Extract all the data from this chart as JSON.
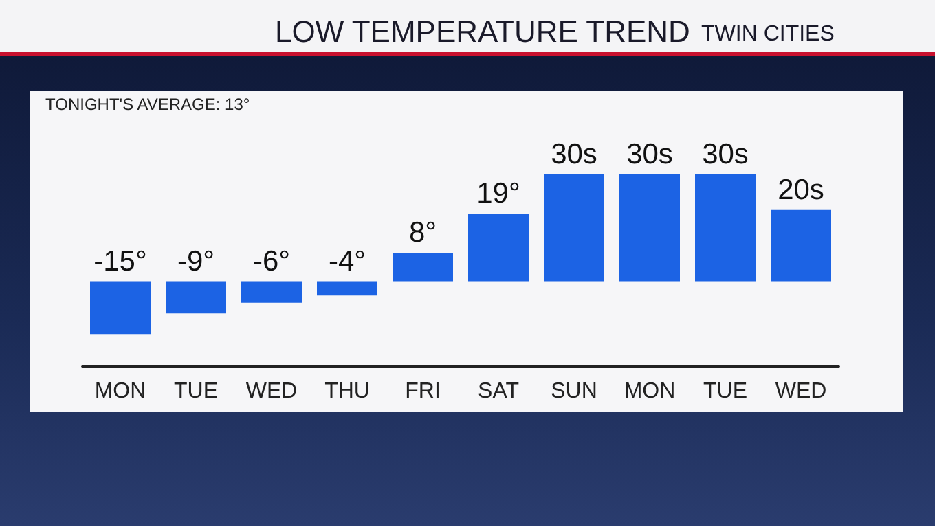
{
  "chart_data": {
    "type": "bar",
    "title": "LOW TEMPERATURE TREND",
    "subtitle": "TWIN CITIES",
    "annotations": [
      "TONIGHT'S AVERAGE: 13°"
    ],
    "categories": [
      "MON",
      "TUE",
      "WED",
      "THU",
      "FRI",
      "SAT",
      "SUN",
      "MON",
      "TUE",
      "WED"
    ],
    "values": [
      -15,
      -9,
      -6,
      -4,
      8,
      19,
      30,
      30,
      30,
      20
    ],
    "value_labels": [
      "-15°",
      "-9°",
      "-6°",
      "-4°",
      "8°",
      "19°",
      "30s",
      "30s",
      "30s",
      "20s"
    ],
    "color": "#1c63e4",
    "ylim": [
      -24,
      30
    ],
    "tick_labels": "x",
    "grid": false
  }
}
